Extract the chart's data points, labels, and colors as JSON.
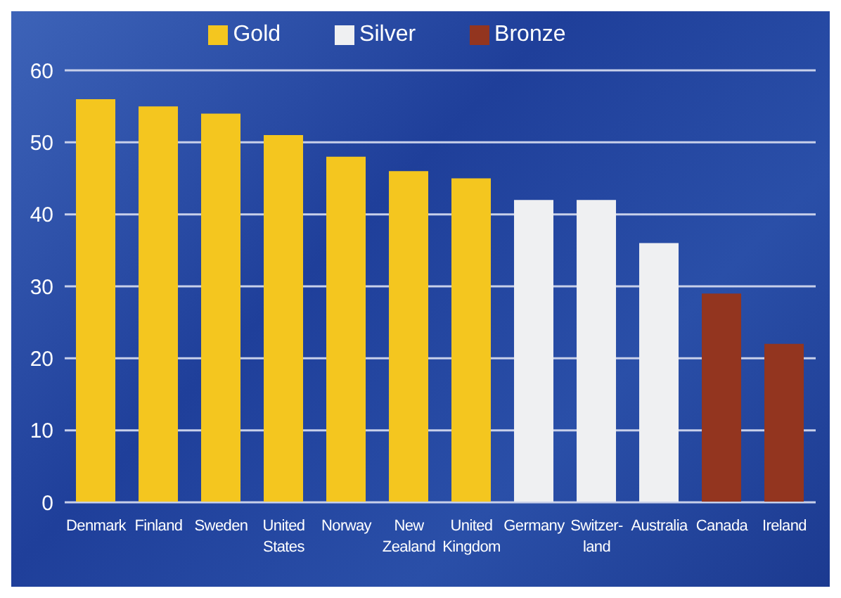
{
  "chart_data": {
    "type": "bar",
    "stacked": true,
    "categories": [
      "Denmark",
      "Finland",
      "Sweden",
      "United States",
      "Norway",
      "New Zealand",
      "United Kingdom",
      "Germany",
      "Switzer-land",
      "Australia",
      "Canada",
      "Ireland"
    ],
    "series": [
      {
        "name": "Gold",
        "color": "#f4c61f",
        "values": [
          56,
          55,
          54,
          51,
          48,
          46,
          45,
          null,
          null,
          null,
          null,
          null
        ]
      },
      {
        "name": "Silver",
        "color": "#eff0f2",
        "values": [
          null,
          null,
          null,
          null,
          null,
          null,
          null,
          42,
          42,
          36,
          null,
          null
        ]
      },
      {
        "name": "Bronze",
        "color": "#93351f",
        "values": [
          null,
          null,
          null,
          null,
          null,
          null,
          null,
          null,
          null,
          null,
          29,
          22
        ]
      }
    ],
    "ylim": [
      0,
      60
    ],
    "yticks": [
      0,
      10,
      20,
      30,
      40,
      50,
      60
    ],
    "grid": "y",
    "legend": "top"
  }
}
